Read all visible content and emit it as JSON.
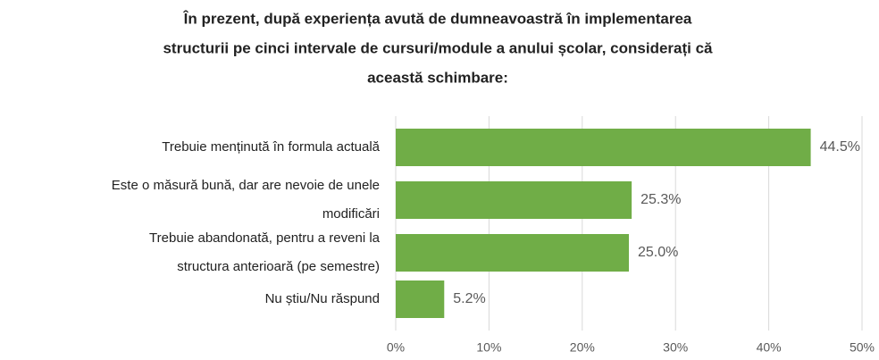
{
  "chart_data": {
    "type": "bar",
    "orientation": "horizontal",
    "title": [
      "În prezent, după experiența avută de dumneavoastră în implementarea",
      "structurii  pe cinci intervale de cursuri/module a anului școlar, considerați că",
      "această schimbare:"
    ],
    "categories": [
      [
        "Trebuie menținută în formula actuală"
      ],
      [
        "Este o măsură bună, dar are nevoie de unele",
        "modificări"
      ],
      [
        "Trebuie abandonată, pentru a reveni la",
        "structura anterioară (pe semestre)"
      ],
      [
        "Nu știu/Nu răspund"
      ]
    ],
    "values": [
      44.5,
      25.3,
      25.0,
      5.2
    ],
    "value_labels": [
      "44.5%",
      "25.3%",
      "25.0%",
      "5.2%"
    ],
    "color": "#70ad47",
    "xlim": [
      0,
      50
    ],
    "xticks": [
      {
        "value": 0,
        "label": "0%"
      },
      {
        "value": 10,
        "label": "10%"
      },
      {
        "value": 20,
        "label": "20%"
      },
      {
        "value": 30,
        "label": "30%"
      },
      {
        "value": 40,
        "label": "40%"
      },
      {
        "value": 50,
        "label": "50%"
      }
    ],
    "grid": true
  }
}
